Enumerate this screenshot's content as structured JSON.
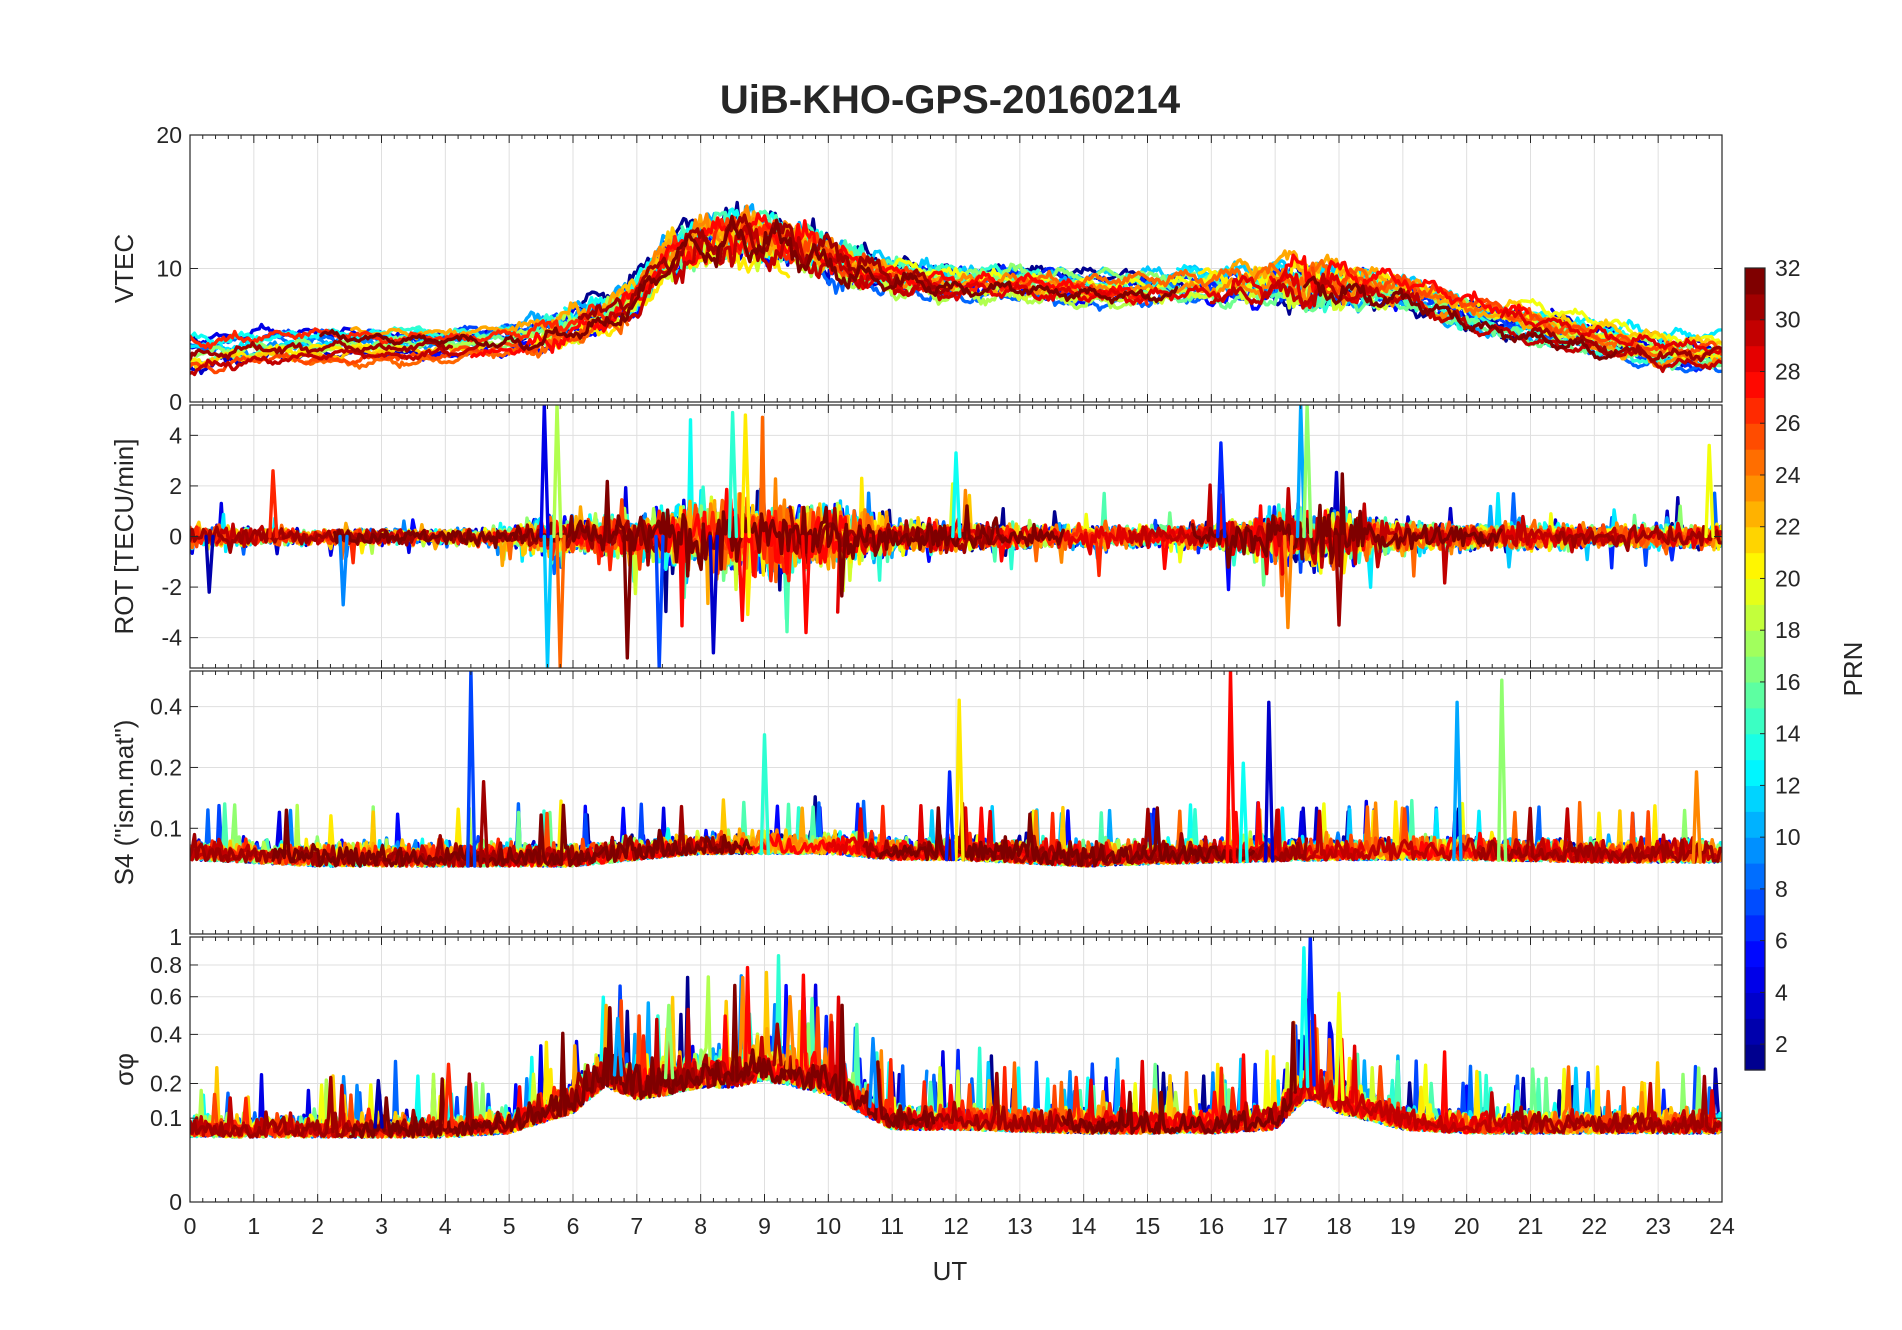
{
  "figure": {
    "title": "UiB-KHO-GPS-20160214"
  },
  "chart_data": [
    {
      "type": "line",
      "panel": "VTEC",
      "ylabel": "VTEC",
      "ylim": [
        0,
        20
      ],
      "yticks": [
        0,
        10,
        20
      ],
      "xlim": [
        0,
        24
      ],
      "grid": true,
      "series_note_prn_range": [
        1,
        32
      ],
      "profile": {
        "x": [
          0,
          1,
          2,
          3,
          4,
          5,
          5.5,
          6,
          6.5,
          7,
          7.5,
          8,
          8.5,
          9,
          9.5,
          10,
          11,
          12,
          13,
          14,
          15,
          16,
          17,
          18,
          19,
          20,
          21,
          22,
          23,
          24
        ],
        "y": [
          3.5,
          4,
          4.3,
          4.2,
          4.3,
          4.8,
          5.2,
          6,
          6.5,
          8,
          11,
          12,
          12.5,
          12.5,
          12,
          11,
          9.5,
          9,
          9,
          8.5,
          8.5,
          8.8,
          9,
          9,
          8.5,
          7,
          6,
          5,
          4,
          3.8
        ]
      },
      "events": []
    },
    {
      "type": "line",
      "panel": "ROT",
      "ylabel": "ROT [TECU/min]",
      "ylim": [
        -5.2,
        5.2
      ],
      "yticks": [
        -4,
        -2,
        0,
        2,
        4
      ],
      "xlim": [
        0,
        24
      ],
      "grid": true,
      "activity": {
        "x": [
          0,
          1,
          2,
          3,
          4,
          5,
          5.5,
          6,
          6.5,
          7,
          7.5,
          8,
          8.5,
          9,
          9.5,
          10,
          10.5,
          11,
          12,
          13,
          14,
          15,
          16,
          16.5,
          17,
          17.5,
          18,
          18.5,
          19,
          20,
          21,
          22,
          23,
          24
        ],
        "y": [
          0.5,
          0.4,
          0.35,
          0.35,
          0.35,
          0.4,
          0.9,
          0.8,
          0.9,
          1.0,
          1.3,
          1.6,
          1.8,
          1.8,
          1.6,
          1.4,
          1.1,
          0.8,
          0.6,
          0.55,
          0.5,
          0.5,
          0.6,
          0.8,
          1.2,
          1.4,
          1.2,
          0.9,
          0.7,
          0.6,
          0.55,
          0.5,
          0.5,
          0.5
        ]
      },
      "events": [
        {
          "x": 5.55,
          "y": 5.2
        },
        {
          "x": 5.6,
          "y": -5.2
        },
        {
          "x": 5.75,
          "y": 5.2
        },
        {
          "x": 5.8,
          "y": -5.2
        },
        {
          "x": 6.85,
          "y": -4.8
        },
        {
          "x": 7.35,
          "y": -5.2
        },
        {
          "x": 8.5,
          "y": 4.9
        },
        {
          "x": 8.7,
          "y": 4.8
        },
        {
          "x": 9.65,
          "y": -3.8
        },
        {
          "x": 8.2,
          "y": -4.6
        },
        {
          "x": 17.4,
          "y": 5.2
        },
        {
          "x": 17.5,
          "y": 5.2
        },
        {
          "x": 17.2,
          "y": -3.6
        },
        {
          "x": 18.0,
          "y": -3.5
        },
        {
          "x": 16.15,
          "y": 3.7
        },
        {
          "x": 12.0,
          "y": 3.3
        },
        {
          "x": 23.8,
          "y": 3.6
        },
        {
          "x": 1.3,
          "y": 2.6
        },
        {
          "x": 0.3,
          "y": -2.2
        },
        {
          "x": 2.4,
          "y": -2.7
        }
      ]
    },
    {
      "type": "line",
      "panel": "S4",
      "ylabel": "S4 (\"ism.mat\")",
      "ylim": [
        0.03,
        0.6
      ],
      "yticks": [
        0.1,
        0.2,
        0.4
      ],
      "scale": "log",
      "xlim": [
        0,
        24
      ],
      "grid": true,
      "activity": {
        "x": [
          0,
          2,
          4,
          6,
          7,
          8,
          9,
          10,
          11,
          12,
          14,
          16,
          18,
          20,
          22,
          24
        ],
        "y": [
          0.07,
          0.065,
          0.065,
          0.065,
          0.07,
          0.075,
          0.075,
          0.075,
          0.07,
          0.07,
          0.065,
          0.068,
          0.07,
          0.07,
          0.068,
          0.068
        ]
      },
      "events": [
        {
          "x": 4.4,
          "y": 0.6
        },
        {
          "x": 9.0,
          "y": 0.29
        },
        {
          "x": 12.05,
          "y": 0.43
        },
        {
          "x": 16.3,
          "y": 0.6
        },
        {
          "x": 16.9,
          "y": 0.42
        },
        {
          "x": 19.85,
          "y": 0.42
        },
        {
          "x": 20.55,
          "y": 0.54
        },
        {
          "x": 23.6,
          "y": 0.19
        },
        {
          "x": 4.6,
          "y": 0.17
        },
        {
          "x": 11.9,
          "y": 0.19
        },
        {
          "x": 16.5,
          "y": 0.21
        }
      ]
    },
    {
      "type": "line",
      "panel": "sigma_phi",
      "ylabel": "σφ",
      "ylim": [
        0,
        1
      ],
      "yticks": [
        0,
        0.1,
        0.2,
        0.4,
        0.6,
        0.8,
        1
      ],
      "scale": "sqrt",
      "xlim": [
        0,
        24
      ],
      "grid": true,
      "activity": {
        "x": [
          0,
          2,
          4,
          5,
          6,
          6.5,
          7,
          7.5,
          8,
          8.5,
          9,
          9.5,
          10,
          10.5,
          11,
          12,
          14,
          16,
          17,
          17.5,
          18,
          19,
          20,
          22,
          24
        ],
        "y": [
          0.08,
          0.08,
          0.08,
          0.09,
          0.15,
          0.25,
          0.2,
          0.22,
          0.25,
          0.25,
          0.28,
          0.25,
          0.22,
          0.15,
          0.1,
          0.1,
          0.09,
          0.09,
          0.1,
          0.2,
          0.15,
          0.1,
          0.09,
          0.09,
          0.09
        ]
      },
      "events": [
        {
          "x": 6.7,
          "y": 0.48
        },
        {
          "x": 7.5,
          "y": 0.55
        },
        {
          "x": 9.4,
          "y": 0.6
        },
        {
          "x": 9.2,
          "y": 0.45
        },
        {
          "x": 17.55,
          "y": 1.0
        },
        {
          "x": 17.45,
          "y": 0.92
        },
        {
          "x": 18.0,
          "y": 0.62
        },
        {
          "x": 4.05,
          "y": 0.27
        },
        {
          "x": 2.95,
          "y": 0.21
        },
        {
          "x": 10.7,
          "y": 0.38
        }
      ]
    }
  ],
  "xaxis": {
    "label": "UT",
    "ticks": [
      0,
      1,
      2,
      3,
      4,
      5,
      6,
      7,
      8,
      9,
      10,
      11,
      12,
      13,
      14,
      15,
      16,
      17,
      18,
      19,
      20,
      21,
      22,
      23,
      24
    ]
  },
  "colorbar": {
    "label": "PRN",
    "range": [
      1,
      32
    ],
    "ticks": [
      2,
      4,
      6,
      8,
      10,
      12,
      14,
      16,
      18,
      20,
      22,
      24,
      26,
      28,
      30,
      32
    ],
    "colormap": "jet",
    "colors": [
      "#00008f",
      "#0000ff",
      "#007fff",
      "#00ffff",
      "#7fff7f",
      "#ffff00",
      "#ff7f00",
      "#ff0000",
      "#7f0000"
    ]
  }
}
